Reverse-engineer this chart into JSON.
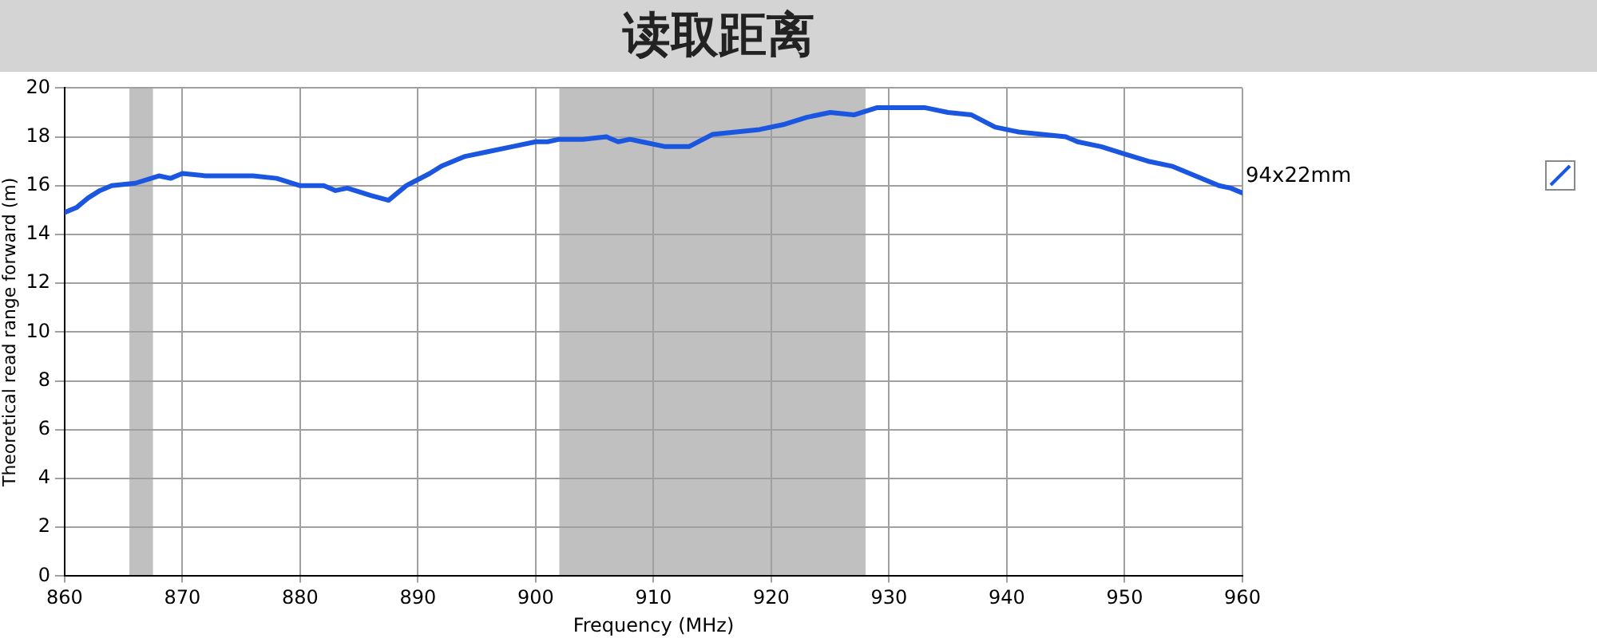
{
  "chart_data": {
    "type": "line",
    "title": "读取距离",
    "xlabel": "Frequency (MHz)",
    "ylabel": "Theoretical read range forward (m)",
    "xlim": [
      860,
      960
    ],
    "xticks": [
      860,
      870,
      880,
      890,
      900,
      910,
      920,
      930,
      940,
      950,
      960
    ],
    "ylim": [
      0,
      20
    ],
    "yticks": [
      0,
      2,
      4,
      6,
      8,
      10,
      12,
      14,
      16,
      18,
      20
    ],
    "grid": true,
    "legend": "right",
    "marker": "none",
    "line_style": "solid",
    "bands": [
      {
        "axis": "x",
        "from": 865.5,
        "to": 867.5,
        "color": "#c0c0c0"
      },
      {
        "axis": "x",
        "from": 902,
        "to": 928,
        "color": "#c0c0c0"
      }
    ],
    "series": [
      {
        "name": "94x22mm",
        "color": "#1a56e0",
        "x": [
          860,
          861,
          862,
          863,
          864,
          866,
          868,
          869,
          870,
          872,
          874,
          876,
          878,
          880,
          882,
          883,
          884,
          886,
          887.5,
          889,
          891,
          892,
          894,
          896,
          898,
          900,
          901,
          902,
          904,
          906,
          907,
          908,
          909,
          911,
          913,
          915,
          917,
          919,
          921,
          923,
          925,
          927,
          929,
          931,
          933,
          935,
          937,
          939,
          941,
          943,
          945,
          946,
          948,
          950,
          952,
          954,
          956,
          958,
          959,
          960
        ],
        "values": [
          14.9,
          15.1,
          15.5,
          15.8,
          16.0,
          16.1,
          16.4,
          16.3,
          16.5,
          16.4,
          16.4,
          16.4,
          16.3,
          16.0,
          16.0,
          15.8,
          15.9,
          15.6,
          15.4,
          16.0,
          16.5,
          16.8,
          17.2,
          17.4,
          17.6,
          17.8,
          17.8,
          17.9,
          17.9,
          18.0,
          17.8,
          17.9,
          17.8,
          17.6,
          17.6,
          18.1,
          18.2,
          18.3,
          18.5,
          18.8,
          19.0,
          18.9,
          19.2,
          19.2,
          19.2,
          19.0,
          18.9,
          18.4,
          18.2,
          18.1,
          18.0,
          17.8,
          17.6,
          17.3,
          17.0,
          16.8,
          16.4,
          16.0,
          15.9,
          15.7
        ]
      }
    ]
  }
}
